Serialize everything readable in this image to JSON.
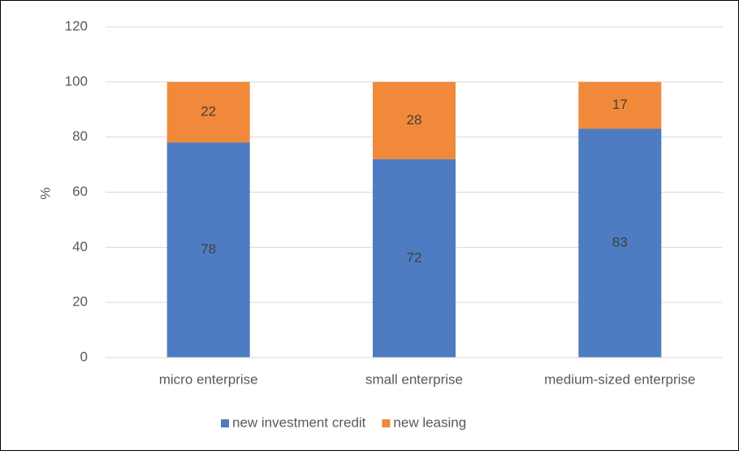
{
  "chart_data": {
    "type": "bar",
    "stacked": true,
    "y_label": "%",
    "categories": [
      "micro enterprise",
      "small enterprise",
      "medium-sized enterprise"
    ],
    "series": [
      {
        "name": "new investment credit",
        "color": "#4e7cc2",
        "values": [
          78,
          72,
          83
        ]
      },
      {
        "name": "new leasing",
        "color": "#f08a3a",
        "values": [
          22,
          28,
          17
        ]
      }
    ],
    "ylim": [
      0,
      120
    ],
    "yticks": [
      0,
      20,
      40,
      60,
      80,
      100,
      120
    ],
    "grid": true,
    "legend": "bottom"
  }
}
